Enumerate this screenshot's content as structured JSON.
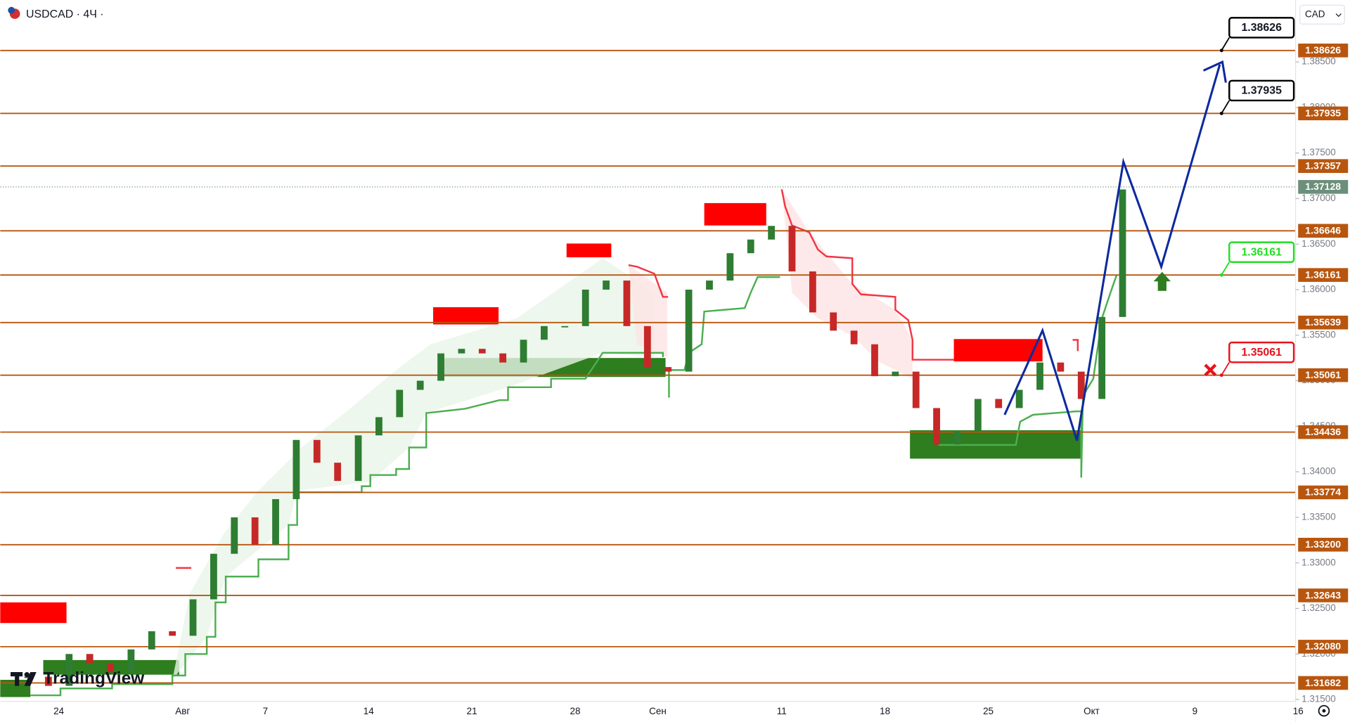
{
  "chart_data": {
    "type": "candlestick",
    "title": "USDCAD · 4Ч ·",
    "currency": "CAD",
    "brand": "TradingView",
    "categories": [
      null,
      null,
      "24",
      null,
      null,
      null,
      null,
      null,
      "Авг",
      null,
      null,
      null,
      "7",
      null,
      null,
      null,
      null,
      "14",
      null,
      null,
      null,
      null,
      "21",
      null,
      null,
      null,
      null,
      "28",
      null,
      null,
      null,
      "Сен",
      null,
      null,
      null,
      null,
      null,
      "11",
      null,
      null,
      null,
      null,
      "18",
      null,
      null,
      null,
      null,
      "25",
      null,
      null,
      null,
      null,
      "Окт",
      null,
      null,
      null,
      null,
      "9",
      null,
      null,
      null,
      null,
      "16"
    ],
    "series": [
      {
        "name": "USDCAD",
        "up_color": "#2e7d32",
        "down_color": "#c62828",
        "values": [
          1.3175,
          1.3165,
          1.32,
          1.319,
          1.318,
          1.3205,
          1.3225,
          1.322,
          1.326,
          1.331,
          1.335,
          1.332,
          1.337,
          1.3435,
          1.341,
          1.339,
          1.344,
          1.346,
          1.349,
          1.35,
          1.353,
          1.3535,
          1.353,
          1.352,
          1.3545,
          1.356,
          1.356,
          1.36,
          1.361,
          1.356,
          1.3515,
          1.351,
          1.36,
          1.361,
          1.364,
          1.3655,
          1.367,
          1.362,
          1.3575,
          1.3555,
          1.354,
          1.3505,
          1.351,
          1.347,
          1.343,
          1.3445,
          1.348,
          1.347,
          1.349,
          1.352,
          1.351,
          1.348,
          1.357,
          1.371,
          null,
          null,
          null,
          null,
          null,
          null,
          null,
          null,
          null
        ]
      }
    ],
    "ylim": [
      1.3148,
      1.3918
    ],
    "yticks": [
      {
        "value": 1.315,
        "label": "1.31500"
      },
      {
        "value": 1.32,
        "label": "1.32000"
      },
      {
        "value": 1.325,
        "label": "1.32500"
      },
      {
        "value": 1.33,
        "label": "1.33000"
      },
      {
        "value": 1.335,
        "label": "1.33500"
      },
      {
        "value": 1.34,
        "label": "1.34000"
      },
      {
        "value": 1.345,
        "label": "1.34500"
      },
      {
        "value": 1.35,
        "label": "1.35000"
      },
      {
        "value": 1.355,
        "label": "1.35500"
      },
      {
        "value": 1.36,
        "label": "1.36000"
      },
      {
        "value": 1.365,
        "label": "1.36500"
      },
      {
        "value": 1.37,
        "label": "1.37000"
      },
      {
        "value": 1.375,
        "label": "1.37500"
      },
      {
        "value": 1.38,
        "label": "1.38000"
      },
      {
        "value": 1.385,
        "label": "1.38500"
      }
    ],
    "grid": false,
    "levels": [
      1.38626,
      1.37935,
      1.37357,
      1.36646,
      1.36161,
      1.35639,
      1.35061,
      1.34436,
      1.33774,
      {
        "value": 1.332,
        "label": "1.33200"
      },
      1.32643,
      {
        "value": 1.3208,
        "label": "1.32080"
      },
      1.31682
    ],
    "level_color": "#b8560f",
    "last_price": 1.37128,
    "last_price_color": "#6b8f7a",
    "callouts": [
      {
        "value": 1.38626,
        "color": "#000000"
      },
      {
        "value": 1.37935,
        "color": "#000000"
      },
      {
        "value": 1.36161,
        "color": "#22dd22"
      },
      {
        "value": 1.35061,
        "color": "#e8111b"
      }
    ]
  }
}
